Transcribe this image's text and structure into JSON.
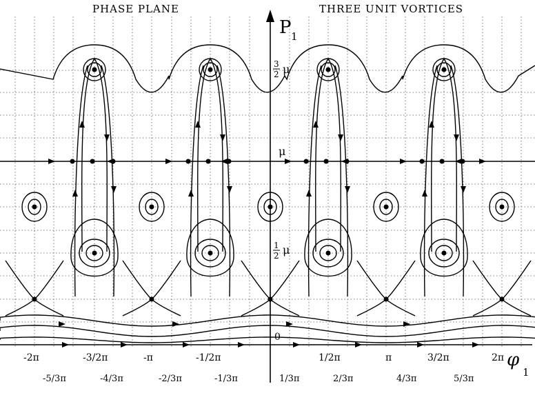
{
  "header": {
    "left_title": "PHASE PLANE",
    "right_title": "THREE UNIT VORTICES"
  },
  "axes": {
    "y_label": "P",
    "y_label_sub": "1",
    "x_label": "φ",
    "x_label_sub": "1",
    "origin_label": "0"
  },
  "y_levels": {
    "three_half": "3",
    "three_half_den": "2",
    "three_half_unit": "μ",
    "mu": "μ",
    "one_half": "1",
    "one_half_den": "2",
    "one_half_unit": "μ"
  },
  "x_ticks_main": [
    "-2π",
    "-3/2π",
    "-π",
    "-1/2π",
    "1/2π",
    "π",
    "3/2π",
    "2π"
  ],
  "x_ticks_thirds": [
    "-5/3π",
    "-4/3π",
    "-2/3π",
    "-1/3π",
    "1/3π",
    "2/3π",
    "4/3π",
    "5/3π"
  ],
  "colors": {
    "ink": "#000000",
    "grid": "#333333",
    "background": "#ffffff"
  }
}
